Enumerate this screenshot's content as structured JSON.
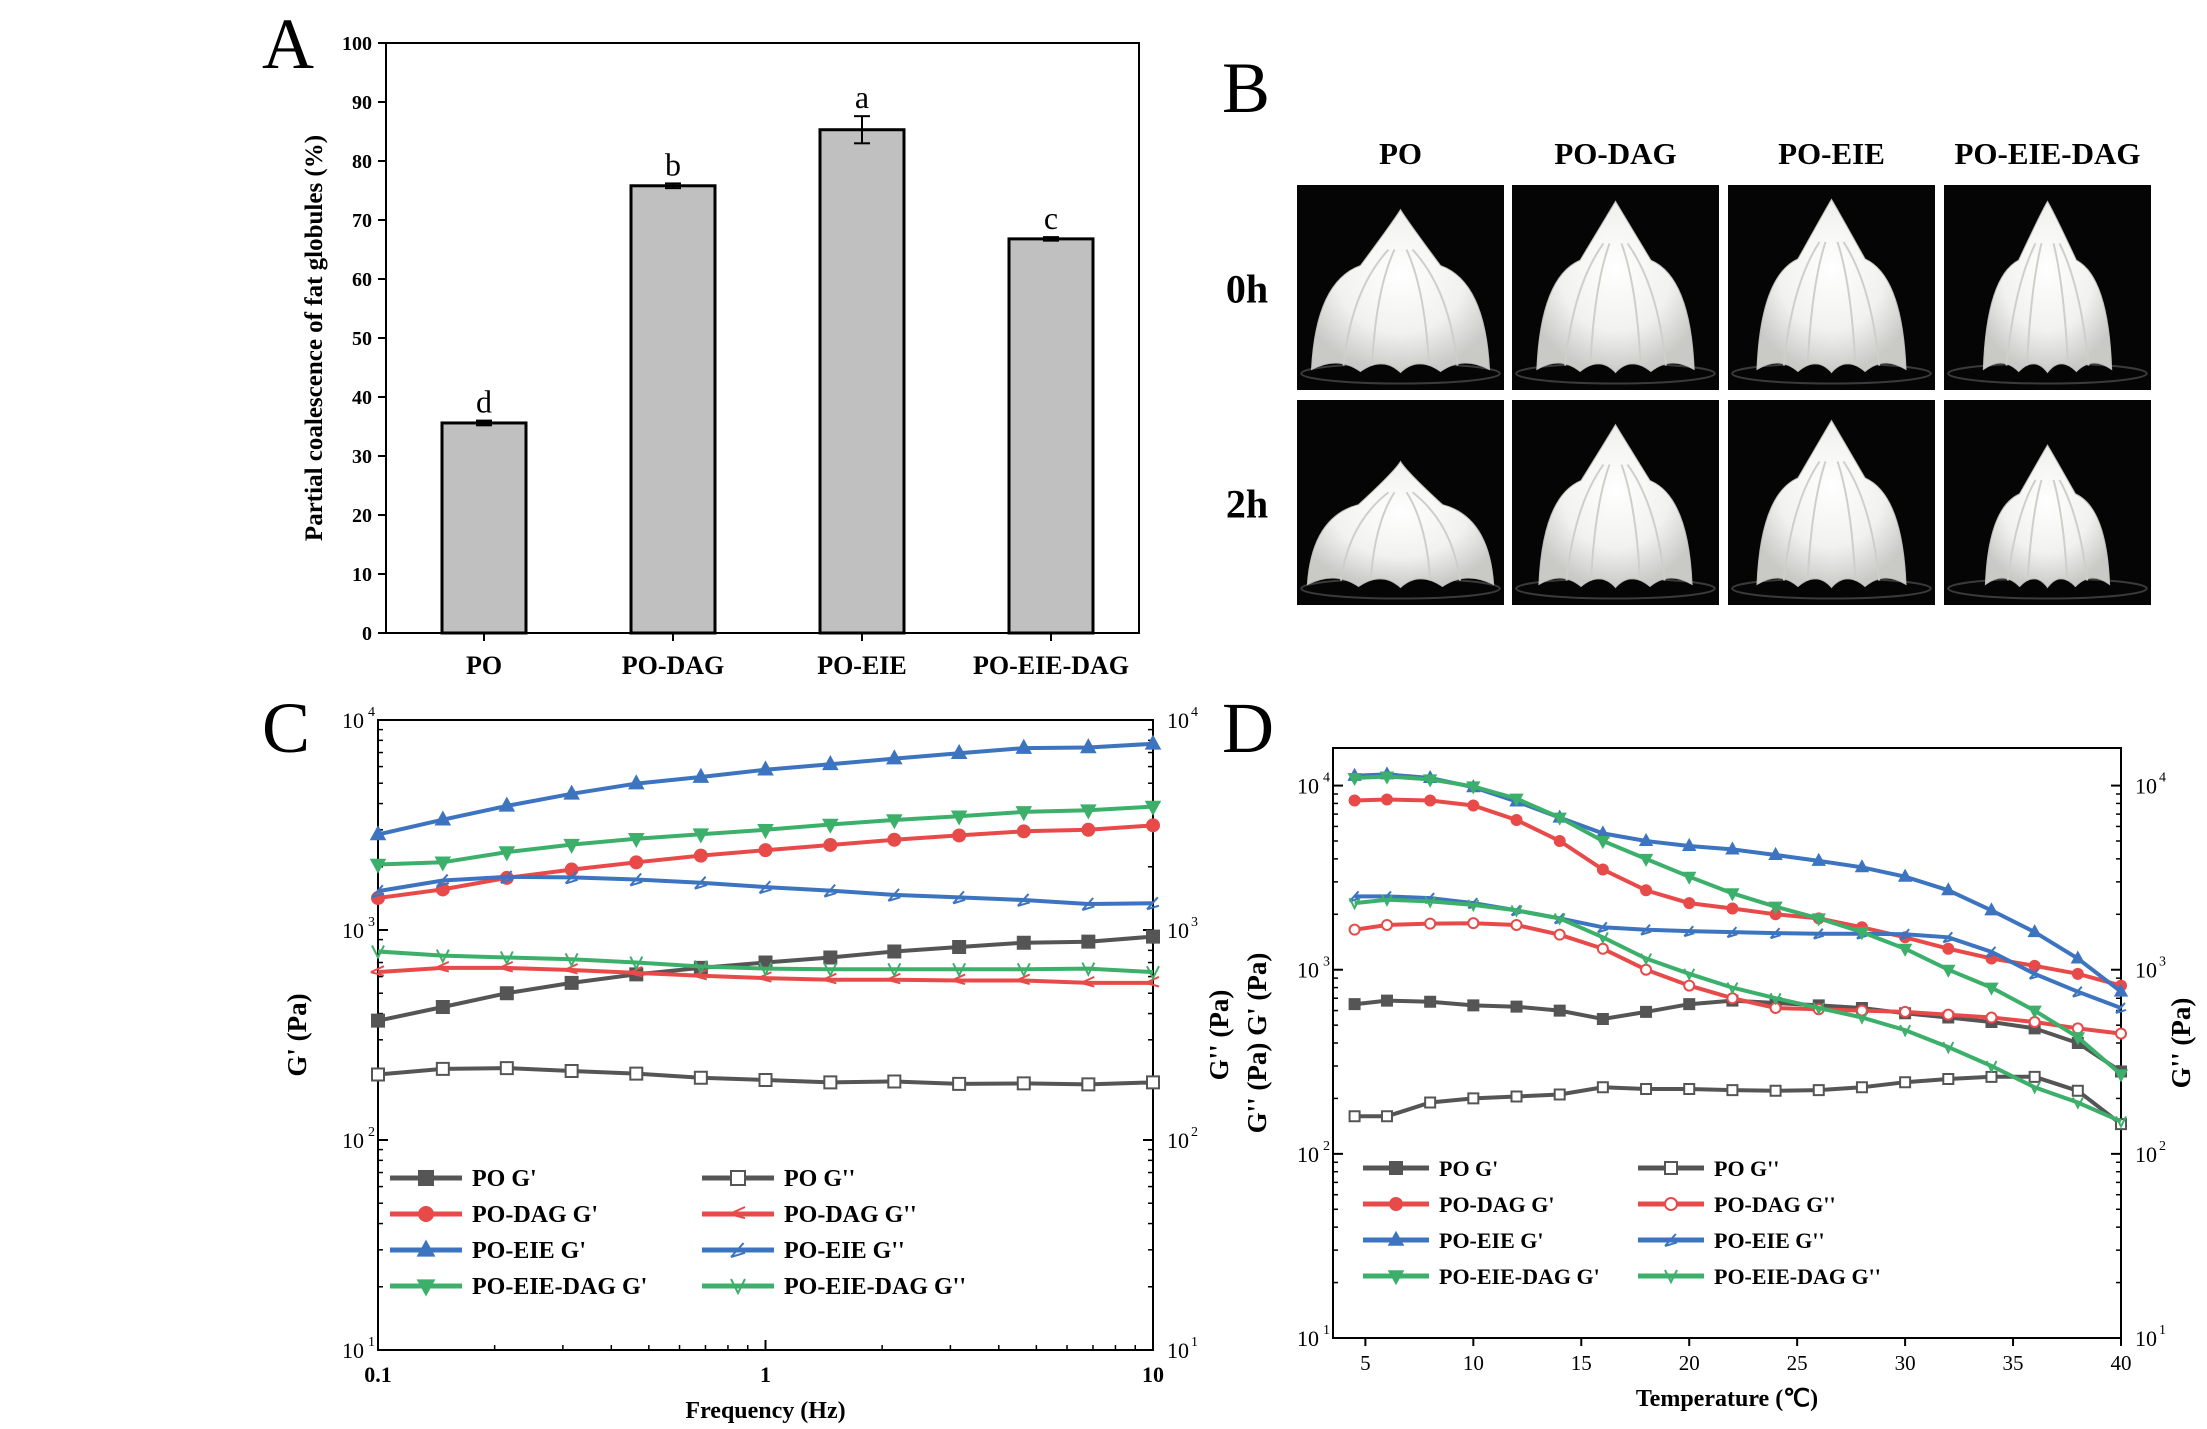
{
  "panels": {
    "A": "A",
    "B": "B",
    "C": "C",
    "D": "D"
  },
  "chart_data": [
    {
      "panel": "A",
      "type": "bar",
      "categories": [
        "PO",
        "PO-DAG",
        "PO-EIE",
        "PO-EIE-DAG"
      ],
      "values": [
        35.6,
        75.8,
        85.3,
        66.8
      ],
      "errors": [
        0.4,
        0.4,
        2.3,
        0.3
      ],
      "significance_letters": [
        "d",
        "b",
        "a",
        "c"
      ],
      "xlabel": "",
      "ylabel": "Partial coalescence of fat globules (%)",
      "ylim": [
        0,
        100
      ],
      "yticks": [
        "0",
        "10",
        "20",
        "30",
        "40",
        "50",
        "60",
        "70",
        "80",
        "90",
        "100"
      ],
      "bar_color": "#c0c0c0"
    },
    {
      "panel": "C",
      "type": "line",
      "xlabel": "Frequency (Hz)",
      "ylabel_left": "G' (Pa)",
      "ylabel_right": "G'' (Pa)",
      "xscale": "log",
      "yscale": "log",
      "xlim": [
        0.1,
        10
      ],
      "ylim": [
        10,
        10000
      ],
      "xtick_labels": [
        "0.1",
        "1",
        "10"
      ],
      "ytick_labels": [
        "10",
        "10",
        "10",
        "10"
      ],
      "ytick_exponents": [
        "1",
        "2",
        "3",
        "4"
      ],
      "x": [
        0.1,
        0.147,
        0.215,
        0.316,
        0.464,
        0.681,
        1.0,
        1.47,
        2.15,
        3.16,
        4.64,
        6.81,
        10.0
      ],
      "series": [
        {
          "name": "PO G'",
          "color": "#555555",
          "marker": "square",
          "filled": true,
          "values": [
            370,
            430,
            500,
            560,
            615,
            660,
            700,
            740,
            790,
            830,
            870,
            880,
            930
          ]
        },
        {
          "name": "PO G''",
          "color": "#555555",
          "marker": "square",
          "filled": false,
          "values": [
            205,
            218,
            220,
            213,
            207,
            198,
            193,
            188,
            190,
            185,
            186,
            184,
            188
          ]
        },
        {
          "name": "PO-DAG G'",
          "color": "#e84a4a",
          "marker": "circle",
          "filled": true,
          "values": [
            1420,
            1560,
            1770,
            1940,
            2100,
            2260,
            2400,
            2540,
            2690,
            2820,
            2950,
            3000,
            3150
          ]
        },
        {
          "name": "PO-DAG G''",
          "color": "#e84a4a",
          "marker": "tri-left",
          "filled": false,
          "values": [
            630,
            660,
            660,
            645,
            625,
            605,
            590,
            580,
            580,
            575,
            575,
            560,
            560
          ]
        },
        {
          "name": "PO-EIE G'",
          "color": "#3c74c0",
          "marker": "triangle-up",
          "filled": true,
          "values": [
            2850,
            3350,
            3900,
            4450,
            4980,
            5350,
            5800,
            6150,
            6550,
            6950,
            7350,
            7400,
            7700
          ]
        },
        {
          "name": "PO-EIE G''",
          "color": "#3c74c0",
          "marker": "tri-right",
          "filled": false,
          "values": [
            1530,
            1720,
            1790,
            1780,
            1740,
            1680,
            1600,
            1540,
            1470,
            1430,
            1390,
            1330,
            1340
          ]
        },
        {
          "name": "PO-EIE-DAG G'",
          "color": "#3cb06a",
          "marker": "triangle-down",
          "filled": true,
          "values": [
            2050,
            2100,
            2350,
            2550,
            2720,
            2860,
            3000,
            3180,
            3340,
            3480,
            3650,
            3720,
            3870
          ]
        },
        {
          "name": "PO-EIE-DAG G''",
          "color": "#3cb06a",
          "marker": "v",
          "filled": false,
          "values": [
            790,
            755,
            740,
            725,
            700,
            670,
            655,
            650,
            650,
            650,
            650,
            655,
            630
          ]
        }
      ]
    },
    {
      "panel": "D",
      "type": "line",
      "xlabel": "Temperature (℃)",
      "ylabel_left": "G'' (Pa)   G' (Pa)",
      "ylabel_right": "G'' (Pa)",
      "xscale": "linear",
      "yscale": "log",
      "xlim": [
        3.5,
        40
      ],
      "ylim": [
        10,
        16000
      ],
      "xtick_labels": [
        "5",
        "10",
        "15",
        "20",
        "25",
        "30",
        "35",
        "40"
      ],
      "xticks": [
        5,
        10,
        15,
        20,
        25,
        30,
        35,
        40
      ],
      "ytick_labels": [
        "10",
        "10",
        "10",
        "10"
      ],
      "ytick_exponents": [
        "1",
        "2",
        "3",
        "4"
      ],
      "x": [
        4.5,
        6,
        8,
        10,
        12,
        14,
        16,
        18,
        20,
        22,
        24,
        26,
        28,
        30,
        32,
        34,
        36,
        38,
        40
      ],
      "series": [
        {
          "name": "PO G'",
          "color": "#555555",
          "marker": "square",
          "filled": true,
          "values": [
            650,
            680,
            670,
            640,
            630,
            600,
            540,
            590,
            650,
            680,
            660,
            640,
            620,
            580,
            550,
            520,
            480,
            400,
            280
          ]
        },
        {
          "name": "PO G''",
          "color": "#555555",
          "marker": "square",
          "filled": false,
          "values": [
            160,
            160,
            190,
            200,
            205,
            210,
            230,
            225,
            225,
            222,
            220,
            222,
            230,
            245,
            255,
            262,
            262,
            220,
            145
          ]
        },
        {
          "name": "PO-DAG G'",
          "color": "#e84a4a",
          "marker": "circle",
          "filled": true,
          "values": [
            8300,
            8400,
            8300,
            7800,
            6500,
            5000,
            3500,
            2700,
            2300,
            2150,
            2000,
            1900,
            1700,
            1500,
            1300,
            1150,
            1050,
            950,
            820
          ]
        },
        {
          "name": "PO-DAG G''",
          "color": "#e84a4a",
          "marker": "circle",
          "filled": false,
          "values": [
            1650,
            1750,
            1780,
            1790,
            1750,
            1550,
            1300,
            1000,
            820,
            700,
            620,
            610,
            600,
            590,
            570,
            550,
            520,
            480,
            450
          ]
        },
        {
          "name": "PO-EIE G'",
          "color": "#3c74c0",
          "marker": "triangle-up",
          "filled": true,
          "values": [
            11300,
            11500,
            11000,
            9800,
            8200,
            6700,
            5500,
            5000,
            4700,
            4500,
            4200,
            3900,
            3600,
            3200,
            2700,
            2100,
            1600,
            1150,
            760
          ]
        },
        {
          "name": "PO-EIE G''",
          "color": "#3c74c0",
          "marker": "tri-right",
          "filled": false,
          "values": [
            2500,
            2500,
            2450,
            2300,
            2100,
            1900,
            1700,
            1650,
            1620,
            1600,
            1580,
            1570,
            1570,
            1560,
            1500,
            1250,
            950,
            760,
            620
          ]
        },
        {
          "name": "PO-EIE-DAG G'",
          "color": "#3cb06a",
          "marker": "triangle-down",
          "filled": true,
          "values": [
            11000,
            11200,
            10800,
            9900,
            8500,
            6700,
            5000,
            4000,
            3200,
            2600,
            2200,
            1900,
            1600,
            1300,
            1000,
            800,
            600,
            430,
            270
          ]
        },
        {
          "name": "PO-EIE-DAG G''",
          "color": "#3cb06a",
          "marker": "v",
          "filled": false,
          "values": [
            2300,
            2400,
            2350,
            2250,
            2100,
            1900,
            1500,
            1150,
            950,
            800,
            700,
            620,
            550,
            470,
            380,
            300,
            230,
            190,
            150
          ]
        }
      ]
    }
  ],
  "photo_grid": {
    "columns": [
      "PO",
      "PO-DAG",
      "PO-EIE",
      "PO-EIE-DAG"
    ],
    "rows": [
      "0h",
      "2h"
    ]
  }
}
